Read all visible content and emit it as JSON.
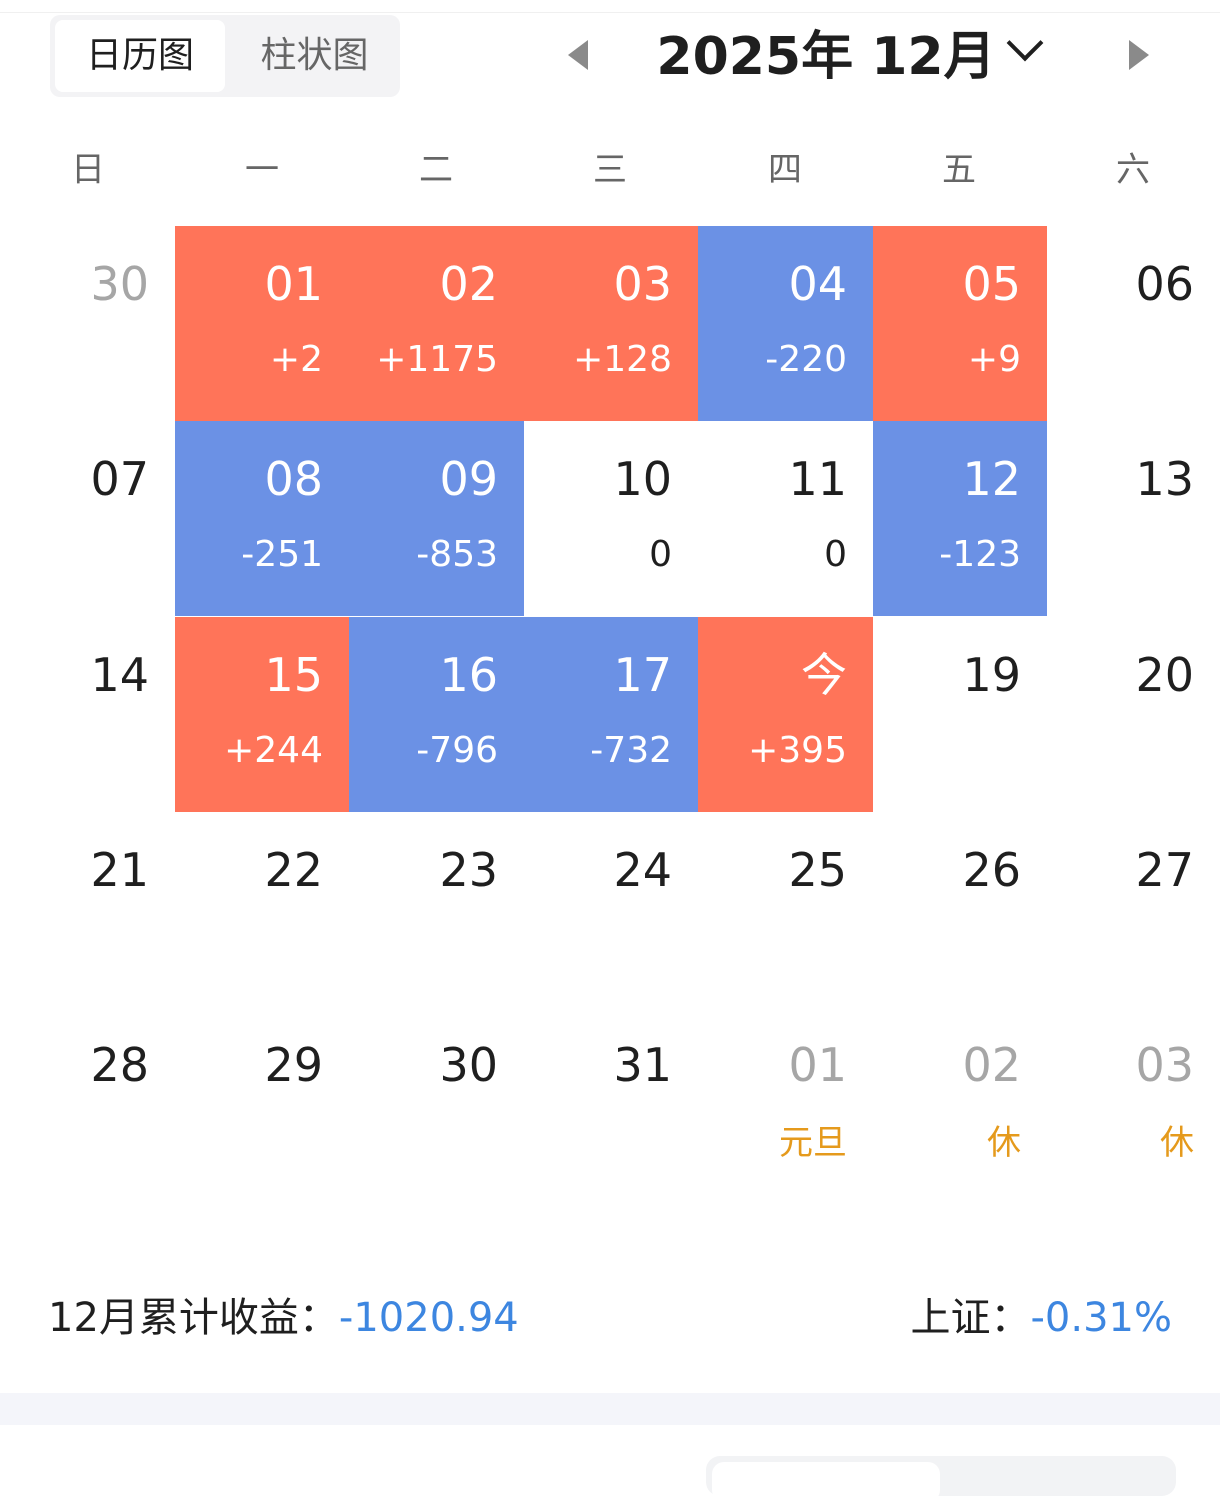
{
  "tabs": [
    {
      "label": "日历图",
      "active": true
    },
    {
      "label": "柱状图",
      "active": false
    }
  ],
  "month_title": "2025年 12月",
  "weekdays": [
    "日",
    "一",
    "二",
    "三",
    "四",
    "五",
    "六"
  ],
  "weeks": [
    [
      {
        "day": "30",
        "value": "",
        "holiday": "",
        "kind": "other"
      },
      {
        "day": "01",
        "value": "+2",
        "holiday": "",
        "kind": "red"
      },
      {
        "day": "02",
        "value": "+1175",
        "holiday": "",
        "kind": "red"
      },
      {
        "day": "03",
        "value": "+128",
        "holiday": "",
        "kind": "red"
      },
      {
        "day": "04",
        "value": "-220",
        "holiday": "",
        "kind": "blue"
      },
      {
        "day": "05",
        "value": "+9",
        "holiday": "",
        "kind": "red"
      },
      {
        "day": "06",
        "value": "",
        "holiday": "",
        "kind": "plain"
      }
    ],
    [
      {
        "day": "07",
        "value": "",
        "holiday": "",
        "kind": "plain"
      },
      {
        "day": "08",
        "value": "-251",
        "holiday": "",
        "kind": "blue"
      },
      {
        "day": "09",
        "value": "-853",
        "holiday": "",
        "kind": "blue"
      },
      {
        "day": "10",
        "value": "0",
        "holiday": "",
        "kind": "zero"
      },
      {
        "day": "11",
        "value": "0",
        "holiday": "",
        "kind": "zero"
      },
      {
        "day": "12",
        "value": "-123",
        "holiday": "",
        "kind": "blue"
      },
      {
        "day": "13",
        "value": "",
        "holiday": "",
        "kind": "plain"
      }
    ],
    [
      {
        "day": "14",
        "value": "",
        "holiday": "",
        "kind": "plain"
      },
      {
        "day": "15",
        "value": "+244",
        "holiday": "",
        "kind": "red"
      },
      {
        "day": "16",
        "value": "-796",
        "holiday": "",
        "kind": "blue"
      },
      {
        "day": "17",
        "value": "-732",
        "holiday": "",
        "kind": "blue"
      },
      {
        "day": "今",
        "value": "+395",
        "holiday": "",
        "kind": "red"
      },
      {
        "day": "19",
        "value": "",
        "holiday": "",
        "kind": "plain"
      },
      {
        "day": "20",
        "value": "",
        "holiday": "",
        "kind": "plain"
      }
    ],
    [
      {
        "day": "21",
        "value": "",
        "holiday": "",
        "kind": "plain"
      },
      {
        "day": "22",
        "value": "",
        "holiday": "",
        "kind": "plain"
      },
      {
        "day": "23",
        "value": "",
        "holiday": "",
        "kind": "plain"
      },
      {
        "day": "24",
        "value": "",
        "holiday": "",
        "kind": "plain"
      },
      {
        "day": "25",
        "value": "",
        "holiday": "",
        "kind": "plain"
      },
      {
        "day": "26",
        "value": "",
        "holiday": "",
        "kind": "plain"
      },
      {
        "day": "27",
        "value": "",
        "holiday": "",
        "kind": "plain"
      }
    ],
    [
      {
        "day": "28",
        "value": "",
        "holiday": "",
        "kind": "plain"
      },
      {
        "day": "29",
        "value": "",
        "holiday": "",
        "kind": "plain"
      },
      {
        "day": "30",
        "value": "",
        "holiday": "",
        "kind": "plain"
      },
      {
        "day": "31",
        "value": "",
        "holiday": "",
        "kind": "plain"
      },
      {
        "day": "01",
        "value": "",
        "holiday": "元旦",
        "kind": "other"
      },
      {
        "day": "02",
        "value": "",
        "holiday": "休",
        "kind": "other"
      },
      {
        "day": "03",
        "value": "",
        "holiday": "休",
        "kind": "other"
      }
    ]
  ],
  "summary": {
    "month_label": "12月累计收益：",
    "month_value": "-1020.94",
    "index_label": "上证：",
    "index_value": "-0.31%"
  },
  "colors": {
    "gain": "#ff7459",
    "loss": "#6b91e5",
    "holiday": "#e59a1c",
    "summary_negative": "#3d86e0"
  }
}
